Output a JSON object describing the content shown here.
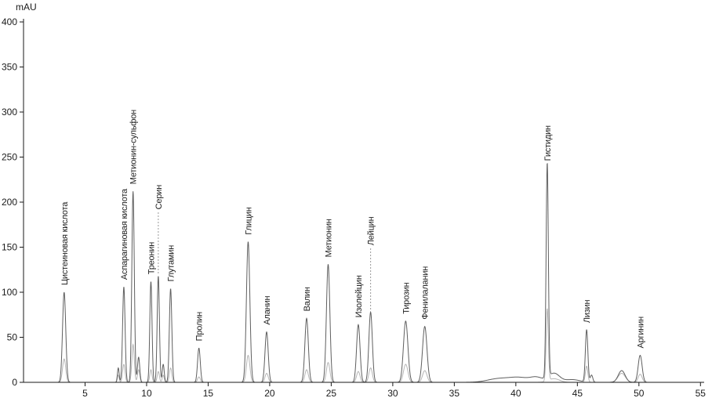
{
  "chart_data": {
    "type": "line",
    "title": "",
    "ylabel": "mAU",
    "xlabel": "",
    "xlim": [
      0,
      55.3
    ],
    "ylim": [
      0,
      400
    ],
    "x_ticks": [
      5,
      10,
      15,
      20,
      25,
      30,
      35,
      40,
      45,
      50,
      55
    ],
    "y_ticks": [
      0,
      50,
      100,
      150,
      200,
      250,
      300,
      350,
      400
    ],
    "grid": false,
    "legend_position": "none",
    "colors": {
      "axis": "#1a1a1a",
      "trace_main": "#5f5f5f",
      "trace_secondary": "#b5b5b5",
      "peak_label": "#1f1f1f",
      "leader_line": "#777777"
    },
    "peaks": [
      {
        "label": "Цистеиновая кислота",
        "rt_min": 3.3,
        "height_main": 100,
        "height_secondary": 26,
        "sigma": 0.13,
        "label_leader": false
      },
      {
        "label": "Аспарагиновая кислота",
        "rt_min": 8.15,
        "height_main": 106,
        "height_secondary": 20,
        "sigma": 0.1,
        "label_leader": false
      },
      {
        "label": "Метионин-сульфон",
        "rt_min": 8.9,
        "height_main": 212,
        "height_secondary": 42,
        "sigma": 0.1,
        "label_leader": false
      },
      {
        "label": "Треонин",
        "rt_min": 10.35,
        "height_main": 112,
        "height_secondary": 14,
        "sigma": 0.09,
        "label_leader": false
      },
      {
        "label": "Серин",
        "rt_min": 10.95,
        "height_main": 118,
        "height_secondary": 12,
        "sigma": 0.09,
        "label_leader": true
      },
      {
        "label": "Глутамин",
        "rt_min": 11.95,
        "height_main": 104,
        "height_secondary": 16,
        "sigma": 0.1,
        "label_leader": false
      },
      {
        "label": "Пролин",
        "rt_min": 14.25,
        "height_main": 38,
        "height_secondary": 6,
        "sigma": 0.11,
        "label_leader": false
      },
      {
        "label": "Глицин",
        "rt_min": 18.25,
        "height_main": 156,
        "height_secondary": 30,
        "sigma": 0.14,
        "label_leader": false
      },
      {
        "label": "Аланин",
        "rt_min": 19.75,
        "height_main": 56,
        "height_secondary": 10,
        "sigma": 0.13,
        "label_leader": false
      },
      {
        "label": "Валин",
        "rt_min": 23.0,
        "height_main": 71,
        "height_secondary": 14,
        "sigma": 0.14,
        "label_leader": false
      },
      {
        "label": "Метионин",
        "rt_min": 24.75,
        "height_main": 131,
        "height_secondary": 22,
        "sigma": 0.14,
        "label_leader": false
      },
      {
        "label": "Изолейцин",
        "rt_min": 27.2,
        "height_main": 64,
        "height_secondary": 12,
        "sigma": 0.14,
        "label_leader": false
      },
      {
        "label": "Лейцин",
        "rt_min": 28.2,
        "height_main": 78,
        "height_secondary": 16,
        "sigma": 0.14,
        "label_leader": true
      },
      {
        "label": "Тирозин",
        "rt_min": 31.05,
        "height_main": 68,
        "height_secondary": 20,
        "sigma": 0.18,
        "label_leader": false
      },
      {
        "label": "Фенилаланин",
        "rt_min": 32.6,
        "height_main": 62,
        "height_secondary": 13,
        "sigma": 0.18,
        "label_leader": false
      },
      {
        "label": "Гистидин",
        "rt_min": 42.55,
        "height_main": 238,
        "height_secondary": 80,
        "sigma": 0.09,
        "label_leader": false
      },
      {
        "label": "Лизин",
        "rt_min": 45.75,
        "height_main": 58,
        "height_secondary": 18,
        "sigma": 0.1,
        "label_leader": false
      },
      {
        "label": "Аргинин",
        "rt_min": 50.1,
        "height_main": 30,
        "height_secondary": 9,
        "sigma": 0.16,
        "label_leader": false
      }
    ],
    "unlabeled_bumps_main": [
      {
        "rt_min": 7.7,
        "height": 16,
        "sigma": 0.07
      },
      {
        "rt_min": 9.35,
        "height": 28,
        "sigma": 0.09
      },
      {
        "rt_min": 11.35,
        "height": 20,
        "sigma": 0.08
      },
      {
        "rt_min": 38.6,
        "height": 4,
        "sigma": 0.9
      },
      {
        "rt_min": 40.3,
        "height": 5,
        "sigma": 0.8
      },
      {
        "rt_min": 41.7,
        "height": 5,
        "sigma": 0.5
      },
      {
        "rt_min": 43.1,
        "height": 10,
        "sigma": 0.45
      },
      {
        "rt_min": 44.6,
        "height": 3,
        "sigma": 0.6
      },
      {
        "rt_min": 46.15,
        "height": 8,
        "sigma": 0.1
      },
      {
        "rt_min": 48.6,
        "height": 13,
        "sigma": 0.28
      }
    ],
    "unlabeled_bumps_secondary": [
      {
        "rt_min": 7.7,
        "height": 8,
        "sigma": 0.07
      },
      {
        "rt_min": 9.35,
        "height": 14,
        "sigma": 0.09
      },
      {
        "rt_min": 11.35,
        "height": 8,
        "sigma": 0.08
      },
      {
        "rt_min": 43.1,
        "height": 4,
        "sigma": 0.45
      },
      {
        "rt_min": 48.6,
        "height": 10,
        "sigma": 0.3
      }
    ]
  }
}
